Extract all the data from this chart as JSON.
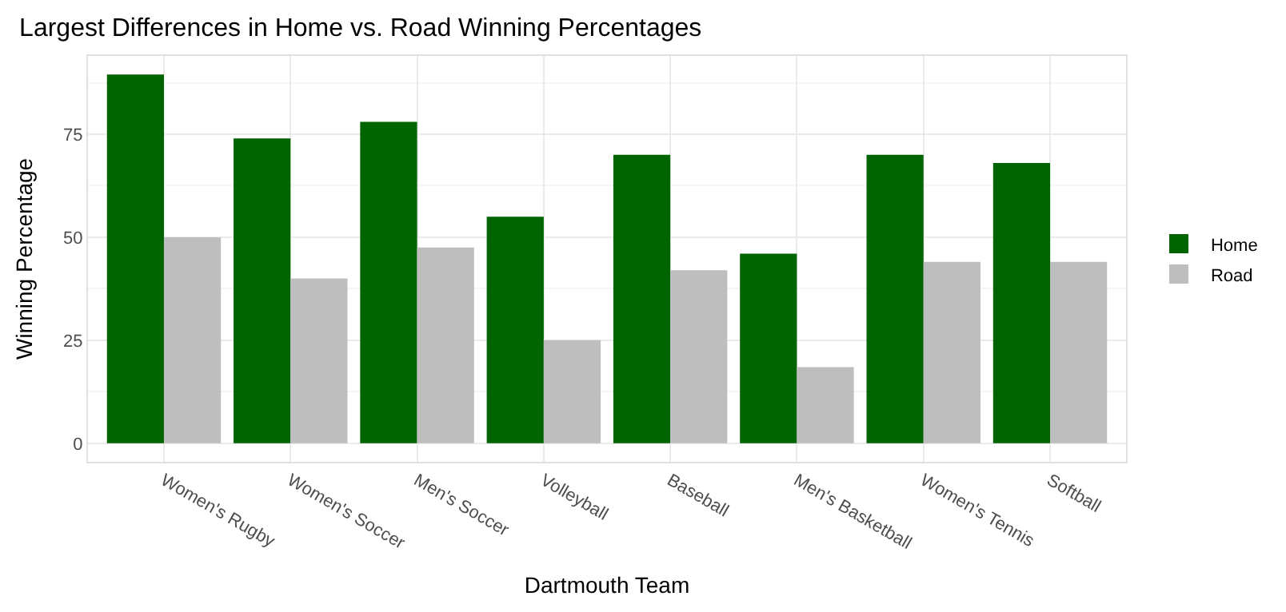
{
  "chart_data": {
    "type": "bar",
    "title": "Largest Differences in Home vs. Road Winning Percentages",
    "xlabel": "Dartmouth Team",
    "ylabel": "Winning Percentage",
    "categories": [
      "Women's Rugby",
      "Women's Soccer",
      "Men's Soccer",
      "Volleyball",
      "Baseball",
      "Men's Basketball",
      "Women's Tennis",
      "Softball"
    ],
    "series": [
      {
        "name": "Home",
        "color": "#006400",
        "values": [
          89.5,
          74,
          78,
          55,
          70,
          46,
          70,
          68
        ]
      },
      {
        "name": "Road",
        "color": "#bebebe",
        "values": [
          50,
          40,
          47.5,
          25,
          42,
          18.5,
          44,
          44
        ]
      }
    ],
    "ylim": [
      -4.5,
      94
    ],
    "yticks": [
      0,
      25,
      50,
      75
    ],
    "grid": true,
    "legend": "right"
  }
}
